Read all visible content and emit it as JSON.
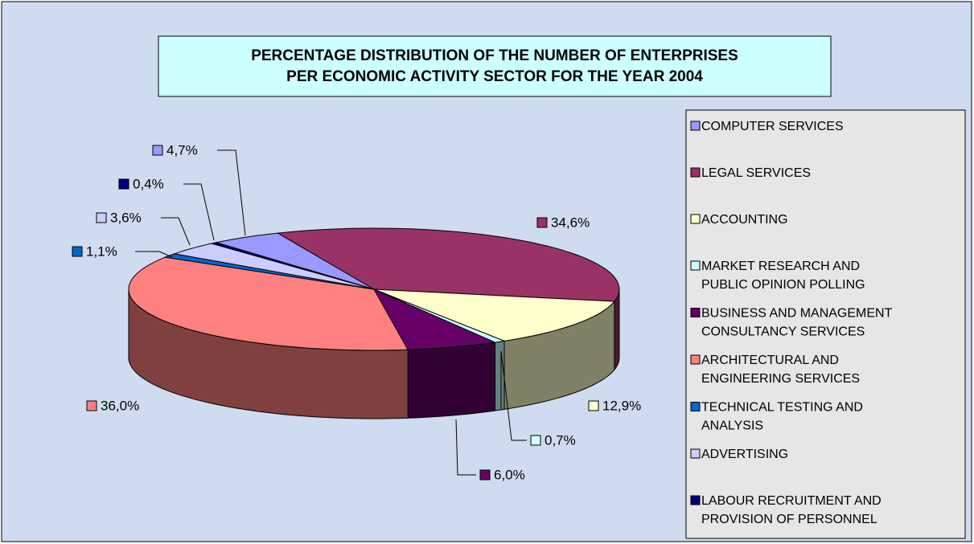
{
  "chart_data": {
    "type": "pie3d",
    "title": "PERCENTAGE DISTRIBUTION OF THE NUMBER OF ENTERPRISES\nPER ECONOMIC ACTIVITY SECTOR FOR THE YEAR 2004",
    "categories": [
      "COMPUTER SERVICES",
      "LEGAL SERVICES",
      "ACCOUNTING",
      "MARKET RESEARCH AND\nPUBLIC OPINION POLLING",
      "BUSINESS AND MANAGEMENT\nCONSULTANCY  SERVICES",
      "ARCHITECTURAL AND\nENGINEERING SERVICES",
      "TECHNICAL TESTING AND\nANALYSIS",
      "ADVERTISING",
      "LABOUR RECRUITMENT AND\nPROVISION OF PERSONNEL"
    ],
    "values": [
      4.7,
      34.6,
      12.9,
      0.7,
      6.0,
      36.0,
      1.1,
      3.6,
      0.4
    ],
    "value_labels": [
      "4,7%",
      "34,6%",
      "12,9%",
      "0,7%",
      "6,0%",
      "36,0%",
      "1,1%",
      "3,6%",
      "0,4%"
    ],
    "colors": [
      "#9999ff",
      "#993366",
      "#ffffcc",
      "#ccffff",
      "#660066",
      "#ff8080",
      "#0066cc",
      "#ccccff",
      "#000080"
    ],
    "legend": "right"
  }
}
